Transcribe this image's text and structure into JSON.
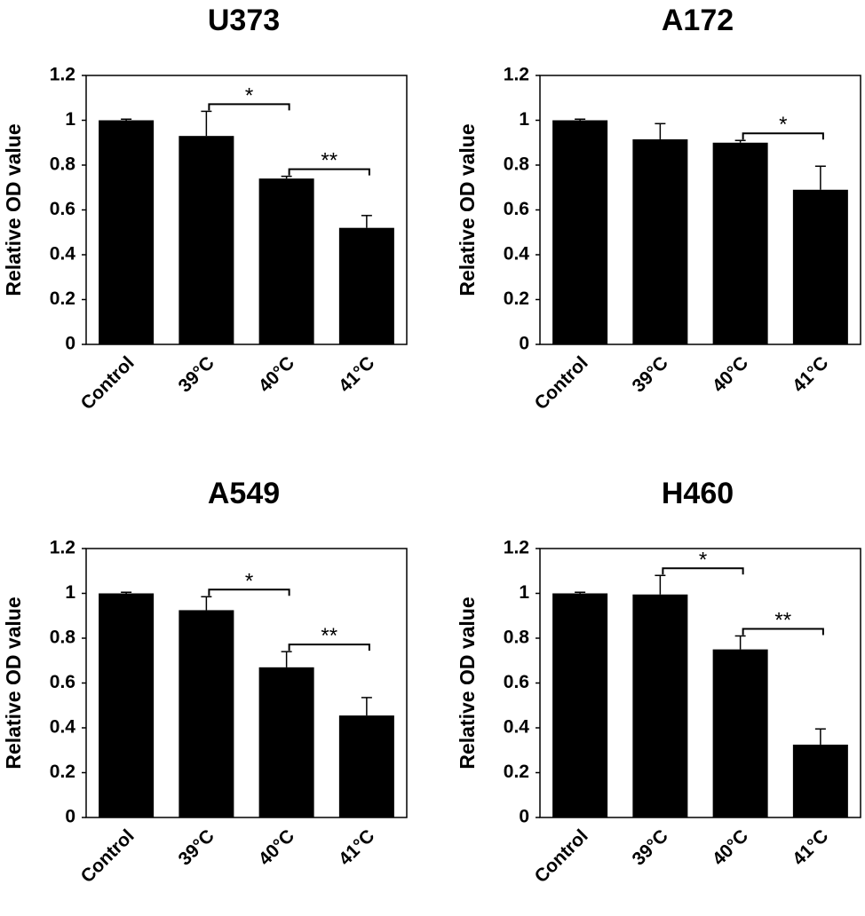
{
  "chart_data": [
    {
      "type": "bar",
      "title": "U373",
      "ylabel": "Relative OD value",
      "categories": [
        "Control",
        "39°C",
        "40°C",
        "41°C"
      ],
      "values": [
        1.0,
        0.93,
        0.74,
        0.52
      ],
      "errors": [
        0.005,
        0.11,
        0.01,
        0.055
      ],
      "color": "#000000",
      "ylim": [
        0,
        1.2
      ],
      "yticks": [
        0,
        0.2,
        0.4,
        0.6,
        0.8,
        1,
        1.2
      ],
      "significance": [
        {
          "label": "*",
          "pair": [
            1,
            2
          ]
        },
        {
          "label": "**",
          "pair": [
            2,
            3
          ]
        }
      ]
    },
    {
      "type": "bar",
      "title": "A172",
      "ylabel": "Relative OD value",
      "categories": [
        "Control",
        "39°C",
        "40°C",
        "41°C"
      ],
      "values": [
        1.0,
        0.915,
        0.9,
        0.69
      ],
      "errors": [
        0.005,
        0.07,
        0.01,
        0.105
      ],
      "color": "#000000",
      "ylim": [
        0,
        1.2
      ],
      "yticks": [
        0,
        0.2,
        0.4,
        0.6,
        0.8,
        1,
        1.2
      ],
      "significance": [
        {
          "label": "*",
          "pair": [
            2,
            3
          ]
        }
      ]
    },
    {
      "type": "bar",
      "title": "A549",
      "ylabel": "Relative OD value",
      "categories": [
        "Control",
        "39°C",
        "40°C",
        "41°C"
      ],
      "values": [
        1.0,
        0.925,
        0.67,
        0.455
      ],
      "errors": [
        0.005,
        0.06,
        0.07,
        0.08
      ],
      "color": "#000000",
      "ylim": [
        0,
        1.2
      ],
      "yticks": [
        0,
        0.2,
        0.4,
        0.6,
        0.8,
        1,
        1.2
      ],
      "significance": [
        {
          "label": "*",
          "pair": [
            1,
            2
          ]
        },
        {
          "label": "**",
          "pair": [
            2,
            3
          ]
        }
      ]
    },
    {
      "type": "bar",
      "title": "H460",
      "ylabel": "Relative OD value",
      "categories": [
        "Control",
        "39°C",
        "40°C",
        "41°C"
      ],
      "values": [
        1.0,
        0.995,
        0.75,
        0.325
      ],
      "errors": [
        0.005,
        0.085,
        0.06,
        0.07
      ],
      "color": "#000000",
      "ylim": [
        0,
        1.2
      ],
      "yticks": [
        0,
        0.2,
        0.4,
        0.6,
        0.8,
        1,
        1.2
      ],
      "significance": [
        {
          "label": "*",
          "pair": [
            1,
            2
          ]
        },
        {
          "label": "**",
          "pair": [
            2,
            3
          ]
        }
      ]
    }
  ]
}
